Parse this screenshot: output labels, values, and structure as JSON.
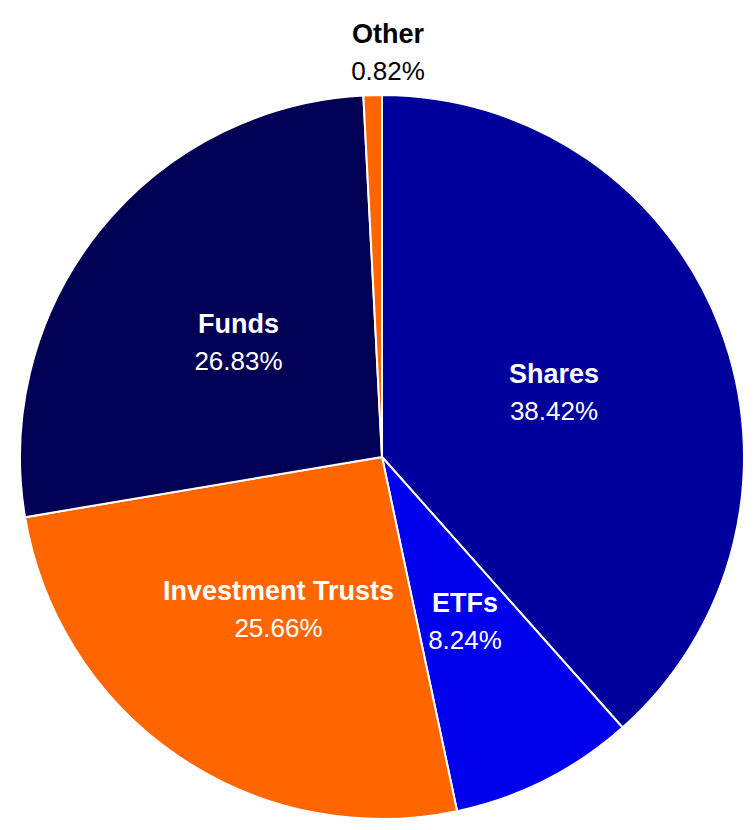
{
  "chart_data": {
    "type": "pie",
    "categories": [
      "Shares",
      "ETFs",
      "Investment Trusts",
      "Funds",
      "Other"
    ],
    "values": [
      38.42,
      8.24,
      25.66,
      26.83,
      0.82
    ],
    "value_labels": [
      "38.42%",
      "8.24%",
      "25.66%",
      "26.83%",
      "0.82%"
    ],
    "colors": [
      "#00009c",
      "#0000ee",
      "#ff6600",
      "#000055",
      "#ff6600"
    ],
    "data_labels": true
  }
}
